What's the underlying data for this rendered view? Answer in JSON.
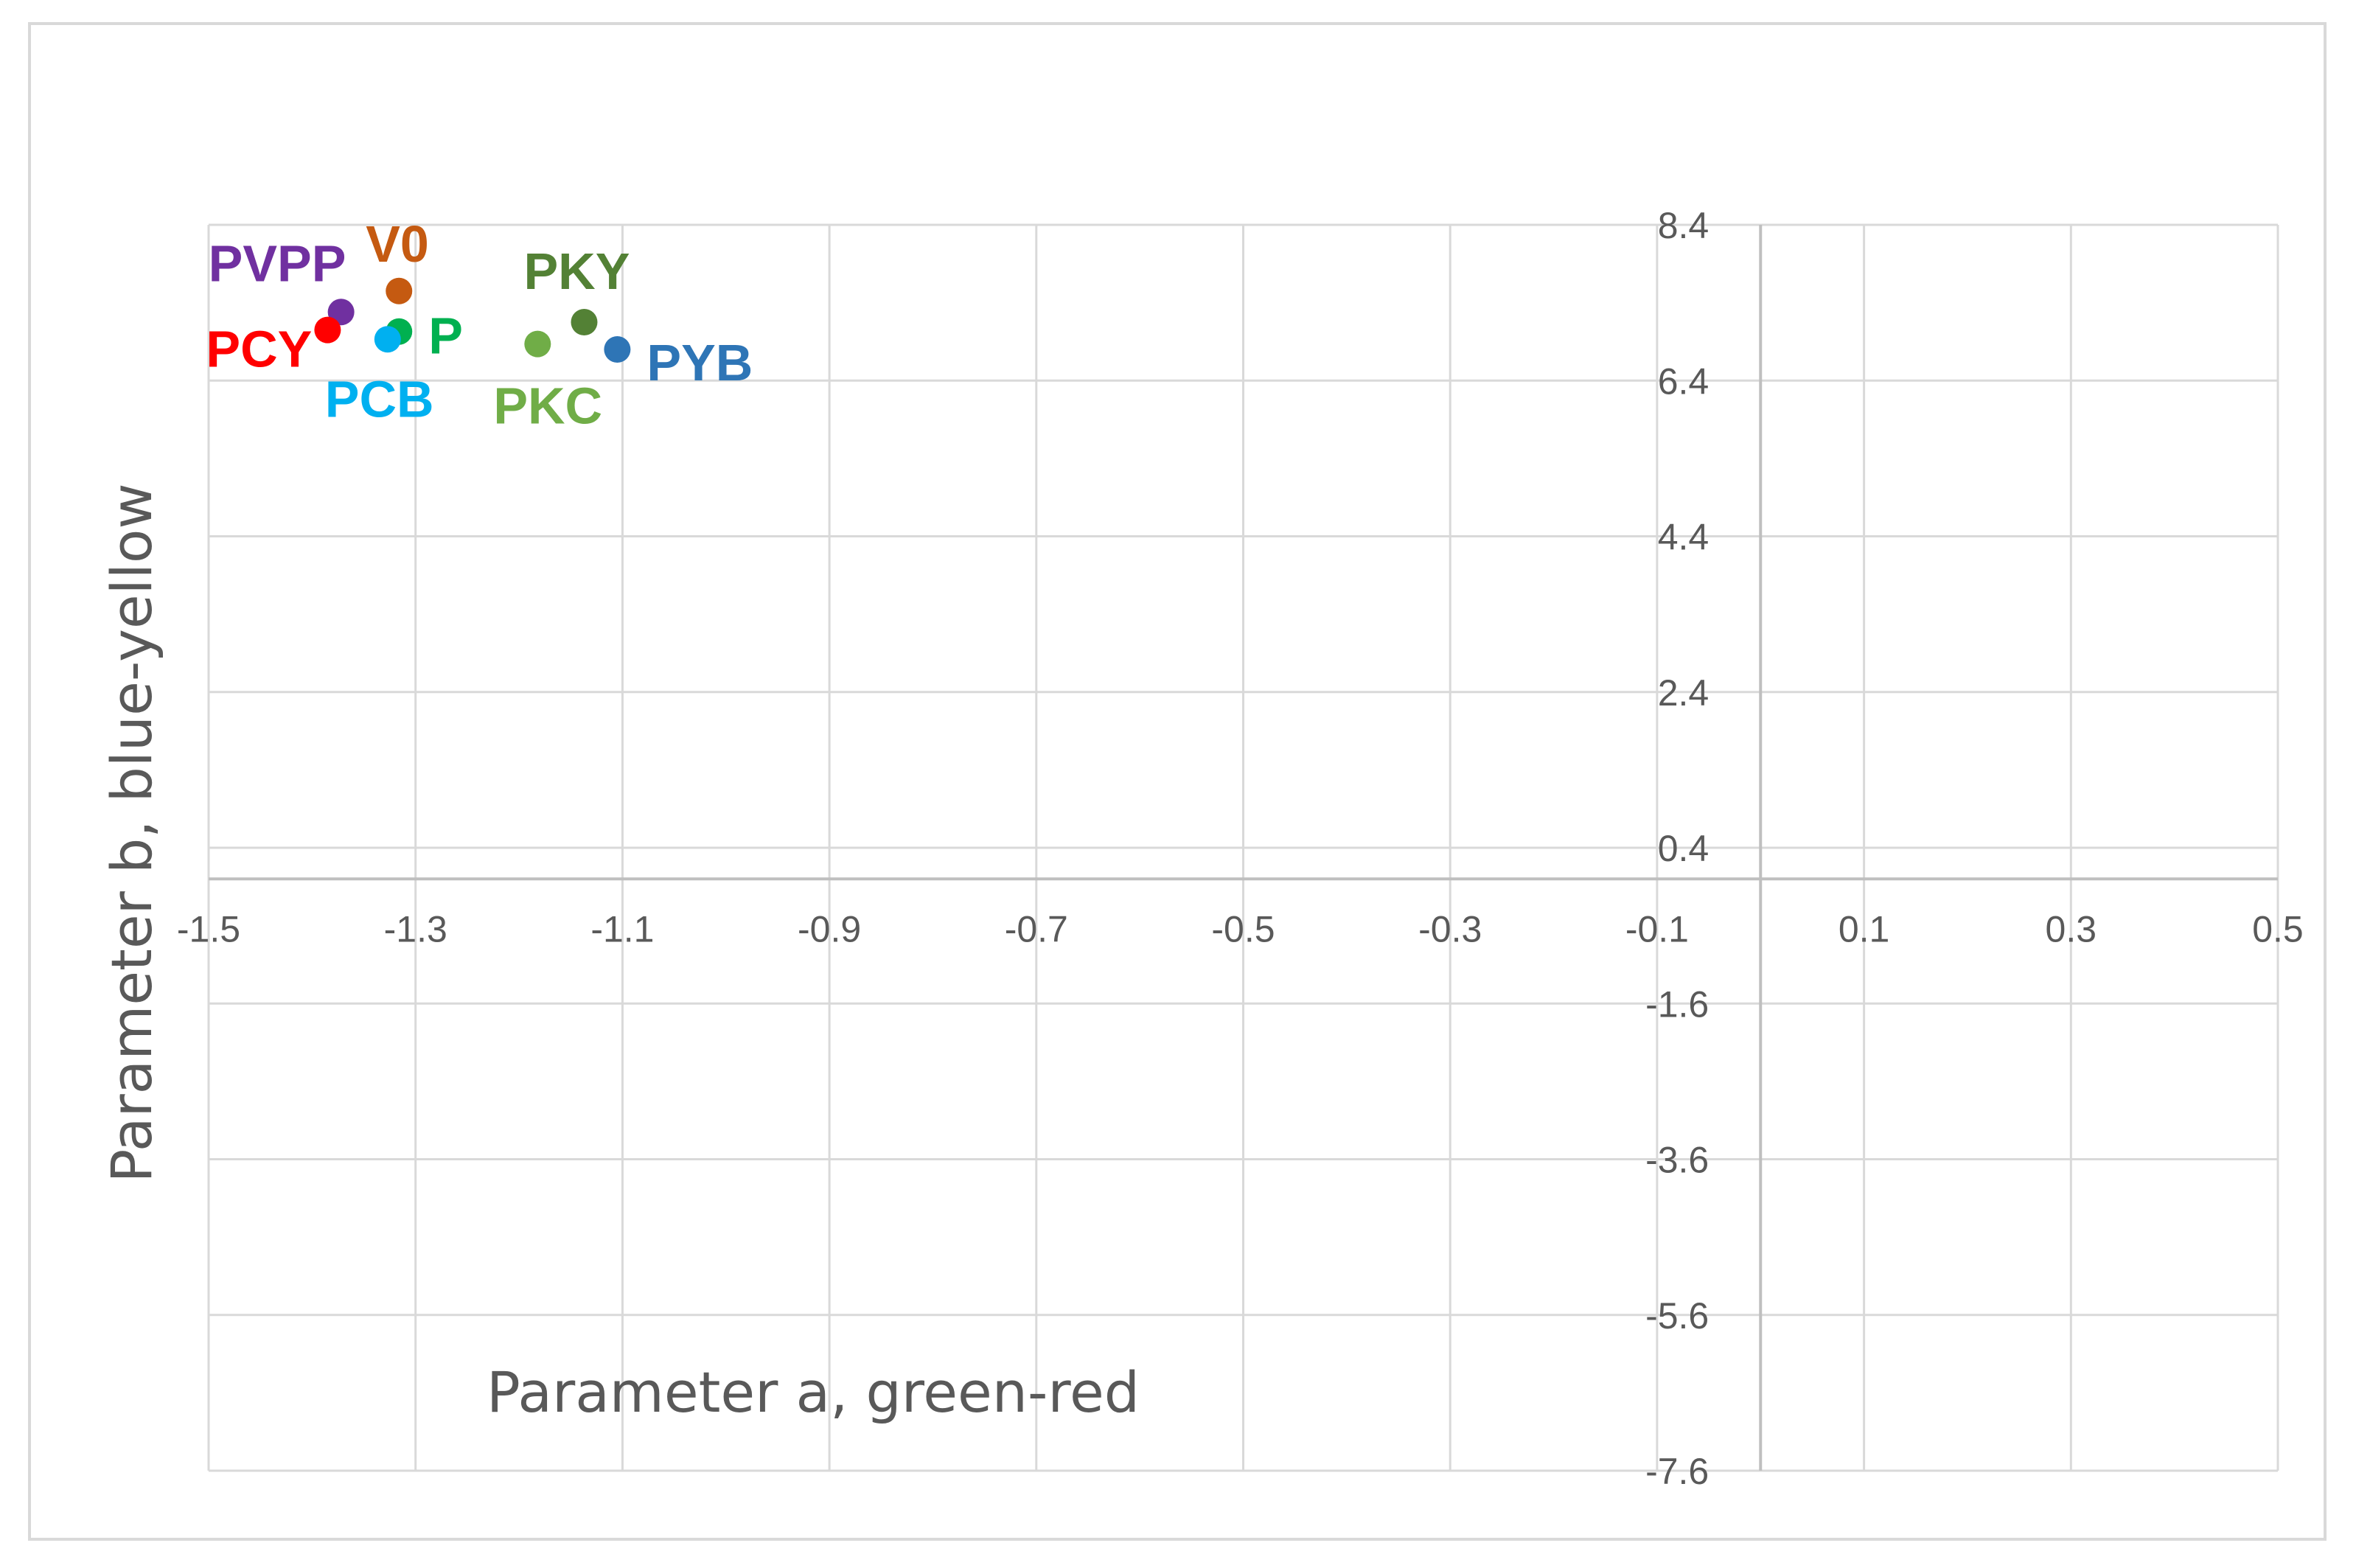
{
  "chart_data": {
    "type": "scatter",
    "xlabel": "Parameter a, green-red",
    "ylabel": "Parameter b, blue-yellow",
    "xlim": [
      -1.5,
      0.5
    ],
    "ylim": [
      -7.6,
      8.4
    ],
    "xticks": [
      "-1.5",
      "-1.3",
      "-1.1",
      "-0.9",
      "-0.7",
      "-0.5",
      "-0.3",
      "-0.1",
      "0.1",
      "0.3",
      "0.5"
    ],
    "yticks": [
      "8.4",
      "6.4",
      "4.4",
      "2.4",
      "0.4",
      "-1.6",
      "-3.6",
      "-5.6",
      "-7.6"
    ],
    "grid": true,
    "points": [
      {
        "label": "V0",
        "x": -1.316,
        "y": 7.55,
        "color": "#c55a11"
      },
      {
        "label": "PVPP",
        "x": -1.372,
        "y": 7.28,
        "color": "#7030a0"
      },
      {
        "label": "PCY",
        "x": -1.385,
        "y": 7.05,
        "color": "#ff0000"
      },
      {
        "label": "P",
        "x": -1.316,
        "y": 7.03,
        "color": "#00b050"
      },
      {
        "label": "PCB",
        "x": -1.327,
        "y": 6.93,
        "color": "#00b0f0"
      },
      {
        "label": "PKY",
        "x": -1.137,
        "y": 7.15,
        "color": "#538135"
      },
      {
        "label": "PKC",
        "x": -1.182,
        "y": 6.87,
        "color": "#70ad47"
      },
      {
        "label": "PYB",
        "x": -1.105,
        "y": 6.8,
        "color": "#2e75b6"
      }
    ]
  }
}
